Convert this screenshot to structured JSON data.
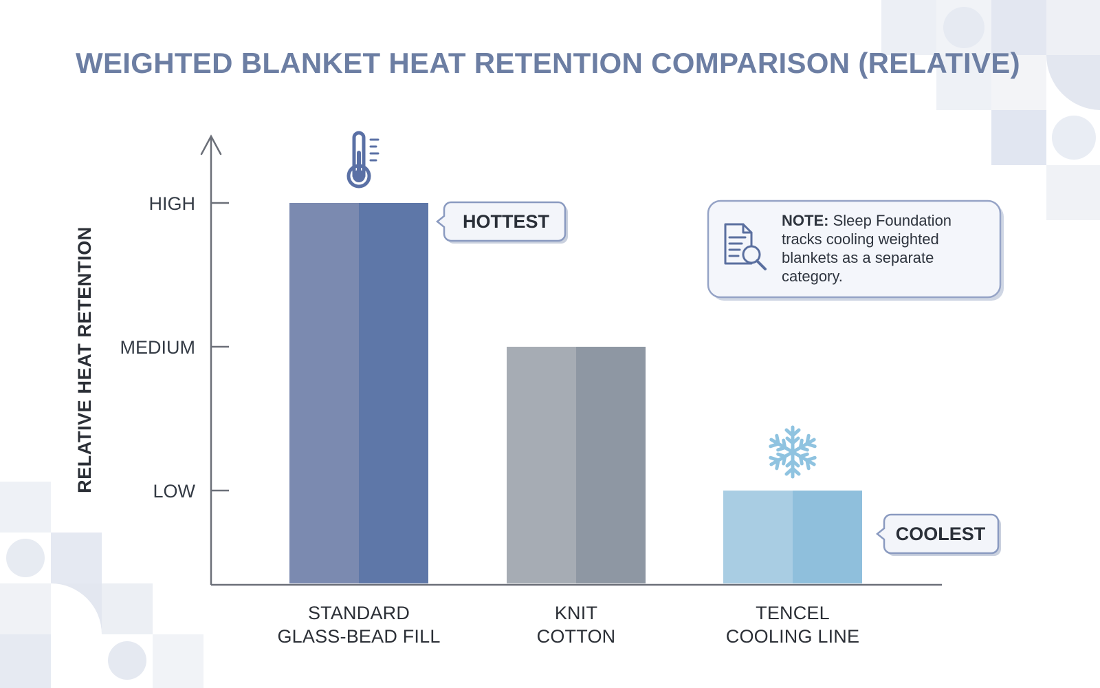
{
  "chart_data": {
    "type": "bar",
    "title": "WEIGHTED BLANKET HEAT RETENTION COMPARISON (RELATIVE)",
    "xlabel": "",
    "ylabel": "RELATIVE HEAT RETENTION",
    "y_ticks": [
      {
        "label": "LOW",
        "value": 1
      },
      {
        "label": "MEDIUM",
        "value": 2
      },
      {
        "label": "HIGH",
        "value": 3
      }
    ],
    "ylim": [
      0,
      3
    ],
    "categories": [
      [
        "STANDARD",
        "GLASS-BEAD FILL"
      ],
      [
        "KNIT",
        "COTTON"
      ],
      [
        "TENCEL",
        "COOLING LINE"
      ]
    ],
    "values": [
      3,
      2,
      1
    ],
    "bar_colors": [
      {
        "light": "#7b8ab0",
        "dark": "#5e77a8"
      },
      {
        "light": "#a6acb4",
        "dark": "#8e97a3"
      },
      {
        "light": "#a9cde3",
        "dark": "#8fbfdc"
      }
    ],
    "callouts": {
      "hottest": "HOTTEST",
      "coolest": "COOLEST"
    },
    "note": {
      "label": "NOTE:",
      "lines": [
        "Sleep Foundation",
        "tracks cooling weighted",
        "blankets as a separate",
        "category."
      ]
    },
    "icons": [
      "thermometer-icon",
      "snowflake-icon",
      "document-search-icon"
    ],
    "grid": false,
    "legend": "none",
    "colors": {
      "title": "#6c7ea3",
      "axis": "#6b6f78",
      "callout_border": "#8a9ac0",
      "note_border": "#95a3c6",
      "snowflake": "#8fc3e0",
      "thermometer": "#5a70a5"
    }
  }
}
